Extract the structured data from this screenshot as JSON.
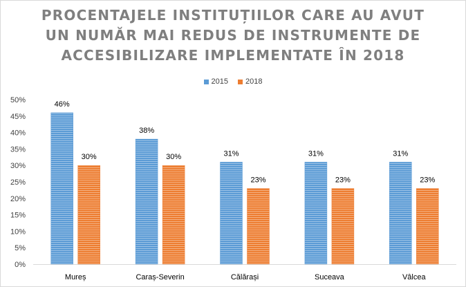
{
  "chart_data": {
    "type": "bar",
    "title_lines": [
      "PROCENTAJELE INSTITUȚIILOR CARE AU AVUT",
      "UN NUMĂR MAI REDUS DE INSTRUMENTE DE",
      "ACCESIBILIZARE IMPLEMENTATE ÎN 2018"
    ],
    "categories": [
      "Mureș",
      "Caraș-Severin",
      "Călărași",
      "Suceava",
      "Vâlcea"
    ],
    "series": [
      {
        "name": "2015",
        "values": [
          46,
          38,
          31,
          31,
          31
        ],
        "color": "#5b9bd5"
      },
      {
        "name": "2018",
        "values": [
          30,
          30,
          23,
          23,
          23
        ],
        "color": "#ed7d31"
      }
    ],
    "value_suffix": "%",
    "ylim": [
      0,
      50
    ],
    "ytick_step": 5,
    "grid": false,
    "legend_position": "top-center",
    "xlabel": "",
    "ylabel": ""
  }
}
